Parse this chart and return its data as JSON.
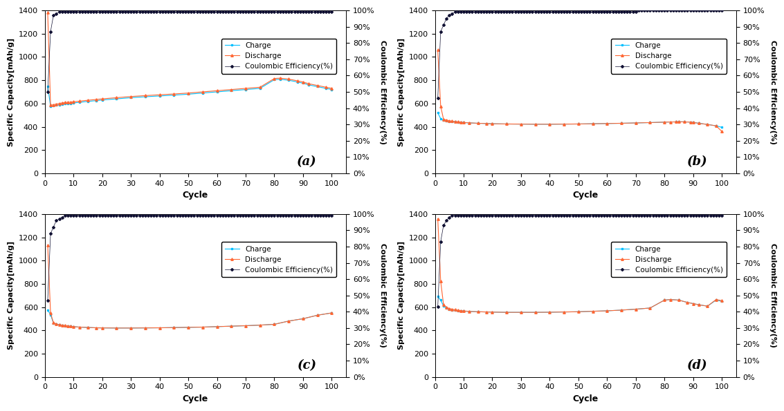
{
  "panels": [
    {
      "label": "(a)",
      "charge_cycles": [
        1,
        2,
        3,
        4,
        5,
        6,
        7,
        8,
        9,
        10,
        12,
        15,
        18,
        20,
        25,
        30,
        35,
        40,
        45,
        50,
        55,
        60,
        65,
        70,
        75,
        80,
        82,
        85,
        88,
        90,
        92,
        95,
        98,
        100
      ],
      "charge_vals": [
        750,
        575,
        580,
        585,
        590,
        595,
        598,
        600,
        602,
        605,
        610,
        618,
        625,
        630,
        640,
        650,
        658,
        665,
        672,
        680,
        690,
        700,
        710,
        720,
        730,
        805,
        808,
        800,
        785,
        775,
        760,
        745,
        730,
        720
      ],
      "discharge_cycles": [
        1,
        2,
        3,
        4,
        5,
        6,
        7,
        8,
        9,
        10,
        12,
        15,
        18,
        20,
        25,
        30,
        35,
        40,
        45,
        50,
        55,
        60,
        65,
        70,
        75,
        80,
        82,
        85,
        88,
        90,
        92,
        95,
        98,
        100
      ],
      "discharge_vals": [
        1380,
        585,
        590,
        595,
        600,
        605,
        608,
        610,
        612,
        615,
        620,
        628,
        635,
        640,
        650,
        660,
        668,
        675,
        682,
        690,
        700,
        710,
        720,
        730,
        740,
        815,
        818,
        810,
        795,
        785,
        770,
        755,
        740,
        730
      ],
      "ce_cycles": [
        1,
        2,
        3,
        4,
        5,
        6,
        7,
        8,
        9,
        10,
        11,
        12,
        13,
        14,
        15,
        16,
        17,
        18,
        19,
        20,
        21,
        22,
        23,
        24,
        25,
        26,
        27,
        28,
        29,
        30,
        31,
        32,
        33,
        34,
        35,
        36,
        37,
        38,
        39,
        40,
        41,
        42,
        43,
        44,
        45,
        46,
        47,
        48,
        49,
        50,
        51,
        52,
        53,
        54,
        55,
        56,
        57,
        58,
        59,
        60,
        61,
        62,
        63,
        64,
        65,
        66,
        67,
        68,
        69,
        70,
        71,
        72,
        73,
        74,
        75,
        76,
        77,
        78,
        79,
        80,
        81,
        82,
        83,
        84,
        85,
        86,
        87,
        88,
        89,
        90,
        91,
        92,
        93,
        94,
        95,
        96,
        97,
        98,
        99,
        100
      ],
      "ce_vals": [
        50,
        87,
        97,
        98,
        99,
        99,
        99,
        99,
        99,
        99,
        99,
        99,
        99,
        99,
        99,
        99,
        99,
        99,
        99,
        99,
        99,
        99,
        99,
        99,
        99,
        99,
        99,
        99,
        99,
        99,
        99,
        99,
        99,
        99,
        99,
        99,
        99,
        99,
        99,
        99,
        99,
        99,
        99,
        99,
        99,
        99,
        99,
        99,
        99,
        99,
        99,
        99,
        99,
        99,
        99,
        99,
        99,
        99,
        99,
        99,
        99,
        99,
        99,
        99,
        99,
        99,
        99,
        99,
        99,
        99,
        99,
        99,
        99,
        99,
        99,
        99,
        99,
        99,
        99,
        99,
        99,
        99,
        99,
        99,
        99,
        99,
        99,
        99,
        99,
        99,
        99,
        99,
        99,
        99,
        99,
        99,
        99,
        99,
        99,
        99
      ]
    },
    {
      "label": "(b)",
      "charge_cycles": [
        1,
        2,
        3,
        4,
        5,
        6,
        7,
        8,
        9,
        10,
        12,
        15,
        18,
        20,
        25,
        30,
        35,
        40,
        45,
        50,
        55,
        60,
        65,
        70,
        75,
        80,
        82,
        84,
        85,
        87,
        89,
        90,
        92,
        95,
        98,
        100
      ],
      "charge_vals": [
        520,
        470,
        455,
        450,
        447,
        444,
        442,
        440,
        438,
        436,
        433,
        430,
        428,
        426,
        424,
        423,
        422,
        422,
        423,
        424,
        426,
        428,
        430,
        433,
        436,
        440,
        441,
        442,
        443,
        442,
        440,
        438,
        430,
        420,
        408,
        395
      ],
      "discharge_cycles": [
        1,
        2,
        3,
        4,
        5,
        6,
        7,
        8,
        9,
        10,
        12,
        15,
        18,
        20,
        25,
        30,
        35,
        40,
        45,
        50,
        55,
        60,
        65,
        70,
        75,
        80,
        82,
        84,
        85,
        87,
        89,
        90,
        92,
        95,
        98,
        100
      ],
      "discharge_vals": [
        1060,
        578,
        465,
        458,
        452,
        448,
        445,
        442,
        440,
        437,
        434,
        430,
        428,
        426,
        424,
        423,
        422,
        422,
        423,
        424,
        426,
        428,
        430,
        433,
        436,
        440,
        441,
        442,
        443,
        442,
        440,
        438,
        430,
        420,
        408,
        360
      ],
      "ce_cycles": [
        1,
        2,
        3,
        4,
        5,
        6,
        7,
        8,
        9,
        10,
        11,
        12,
        13,
        14,
        15,
        16,
        17,
        18,
        19,
        20,
        21,
        22,
        23,
        24,
        25,
        26,
        27,
        28,
        29,
        30,
        31,
        32,
        33,
        34,
        35,
        36,
        37,
        38,
        39,
        40,
        41,
        42,
        43,
        44,
        45,
        46,
        47,
        48,
        49,
        50,
        51,
        52,
        53,
        54,
        55,
        56,
        57,
        58,
        59,
        60,
        61,
        62,
        63,
        64,
        65,
        66,
        67,
        68,
        69,
        70,
        71,
        72,
        73,
        74,
        75,
        76,
        77,
        78,
        79,
        80,
        81,
        82,
        83,
        84,
        85,
        86,
        87,
        88,
        89,
        90,
        91,
        92,
        93,
        94,
        95,
        96,
        97,
        98,
        99,
        100
      ],
      "ce_vals": [
        46,
        87,
        91,
        95,
        97,
        98,
        99,
        99,
        99,
        99,
        99,
        99,
        99,
        99,
        99,
        99,
        99,
        99,
        99,
        99,
        99,
        99,
        99,
        99,
        99,
        99,
        99,
        99,
        99,
        99,
        99,
        99,
        99,
        99,
        99,
        99,
        99,
        99,
        99,
        99,
        99,
        99,
        99,
        99,
        99,
        99,
        99,
        99,
        99,
        99,
        99,
        99,
        99,
        99,
        99,
        99,
        99,
        99,
        99,
        99,
        99,
        99,
        99,
        99,
        99,
        99,
        99,
        99,
        99,
        99,
        100,
        100,
        100,
        100,
        100,
        100,
        100,
        100,
        100,
        100,
        100,
        100,
        100,
        100,
        100,
        100,
        100,
        100,
        100,
        100,
        100,
        100,
        100,
        100,
        100,
        100,
        100,
        100,
        100,
        100
      ]
    },
    {
      "label": "(c)",
      "charge_cycles": [
        1,
        2,
        3,
        4,
        5,
        6,
        7,
        8,
        9,
        10,
        12,
        15,
        18,
        20,
        25,
        30,
        35,
        40,
        45,
        50,
        55,
        60,
        65,
        70,
        75,
        80,
        85,
        90,
        95,
        100
      ],
      "charge_vals": [
        575,
        535,
        462,
        452,
        447,
        443,
        440,
        437,
        435,
        432,
        428,
        425,
        422,
        421,
        420,
        420,
        421,
        422,
        424,
        426,
        428,
        432,
        436,
        440,
        445,
        452,
        480,
        500,
        530,
        550
      ],
      "discharge_cycles": [
        1,
        2,
        3,
        4,
        5,
        6,
        7,
        8,
        9,
        10,
        12,
        15,
        18,
        20,
        25,
        30,
        35,
        40,
        45,
        50,
        55,
        60,
        65,
        70,
        75,
        80,
        85,
        90,
        95,
        100
      ],
      "discharge_vals": [
        1130,
        548,
        467,
        455,
        449,
        445,
        441,
        438,
        435,
        432,
        428,
        425,
        422,
        421,
        420,
        420,
        421,
        422,
        424,
        426,
        428,
        432,
        436,
        440,
        445,
        452,
        480,
        500,
        530,
        550
      ],
      "ce_cycles": [
        1,
        2,
        3,
        4,
        5,
        6,
        7,
        8,
        9,
        10,
        11,
        12,
        13,
        14,
        15,
        16,
        17,
        18,
        19,
        20,
        21,
        22,
        23,
        24,
        25,
        26,
        27,
        28,
        29,
        30,
        31,
        32,
        33,
        34,
        35,
        36,
        37,
        38,
        39,
        40,
        41,
        42,
        43,
        44,
        45,
        46,
        47,
        48,
        49,
        50,
        51,
        52,
        53,
        54,
        55,
        56,
        57,
        58,
        59,
        60,
        61,
        62,
        63,
        64,
        65,
        66,
        67,
        68,
        69,
        70,
        71,
        72,
        73,
        74,
        75,
        76,
        77,
        78,
        79,
        80,
        81,
        82,
        83,
        84,
        85,
        86,
        87,
        88,
        89,
        90,
        91,
        92,
        93,
        94,
        95,
        96,
        97,
        98,
        99,
        100
      ],
      "ce_vals": [
        47,
        88,
        92,
        96,
        97,
        98,
        99,
        99,
        99,
        99,
        99,
        99,
        99,
        99,
        99,
        99,
        99,
        99,
        99,
        99,
        99,
        99,
        99,
        99,
        99,
        99,
        99,
        99,
        99,
        99,
        99,
        99,
        99,
        99,
        99,
        99,
        99,
        99,
        99,
        99,
        99,
        99,
        99,
        99,
        99,
        99,
        99,
        99,
        99,
        99,
        99,
        99,
        99,
        99,
        99,
        99,
        99,
        99,
        99,
        99,
        99,
        99,
        99,
        99,
        99,
        99,
        99,
        99,
        99,
        99,
        99,
        99,
        99,
        99,
        99,
        99,
        99,
        99,
        99,
        99,
        99,
        99,
        99,
        99,
        99,
        99,
        99,
        99,
        99,
        99,
        99,
        99,
        99,
        99,
        99,
        99,
        99,
        99,
        99,
        99
      ]
    },
    {
      "label": "(d)",
      "charge_cycles": [
        1,
        2,
        3,
        4,
        5,
        6,
        7,
        8,
        9,
        10,
        12,
        15,
        18,
        20,
        25,
        30,
        35,
        40,
        45,
        50,
        55,
        60,
        65,
        70,
        75,
        80,
        82,
        85,
        88,
        90,
        92,
        95,
        98,
        100
      ],
      "charge_vals": [
        690,
        660,
        610,
        590,
        580,
        575,
        572,
        570,
        567,
        565,
        562,
        560,
        558,
        557,
        555,
        555,
        555,
        556,
        558,
        560,
        564,
        568,
        574,
        582,
        592,
        660,
        665,
        660,
        640,
        630,
        620,
        608,
        660,
        650
      ],
      "discharge_cycles": [
        1,
        2,
        3,
        4,
        5,
        6,
        7,
        8,
        9,
        10,
        12,
        15,
        18,
        20,
        25,
        30,
        35,
        40,
        45,
        50,
        55,
        60,
        65,
        70,
        75,
        80,
        82,
        85,
        88,
        90,
        92,
        95,
        98,
        100
      ],
      "discharge_vals": [
        1360,
        825,
        622,
        600,
        588,
        582,
        577,
        573,
        570,
        567,
        563,
        560,
        558,
        557,
        555,
        555,
        555,
        556,
        558,
        560,
        564,
        568,
        574,
        582,
        592,
        660,
        665,
        660,
        640,
        630,
        620,
        608,
        665,
        655
      ],
      "ce_cycles": [
        1,
        2,
        3,
        4,
        5,
        6,
        7,
        8,
        9,
        10,
        11,
        12,
        13,
        14,
        15,
        16,
        17,
        18,
        19,
        20,
        21,
        22,
        23,
        24,
        25,
        26,
        27,
        28,
        29,
        30,
        31,
        32,
        33,
        34,
        35,
        36,
        37,
        38,
        39,
        40,
        41,
        42,
        43,
        44,
        45,
        46,
        47,
        48,
        49,
        50,
        51,
        52,
        53,
        54,
        55,
        56,
        57,
        58,
        59,
        60,
        61,
        62,
        63,
        64,
        65,
        66,
        67,
        68,
        69,
        70,
        71,
        72,
        73,
        74,
        75,
        76,
        77,
        78,
        79,
        80,
        81,
        82,
        83,
        84,
        85,
        86,
        87,
        88,
        89,
        90,
        91,
        92,
        93,
        94,
        95,
        96,
        97,
        98,
        99,
        100
      ],
      "ce_vals": [
        43,
        83,
        93,
        96,
        98,
        99,
        99,
        99,
        99,
        99,
        99,
        99,
        99,
        99,
        99,
        99,
        99,
        99,
        99,
        99,
        99,
        99,
        99,
        99,
        99,
        99,
        99,
        99,
        99,
        99,
        99,
        99,
        99,
        99,
        99,
        99,
        99,
        99,
        99,
        99,
        99,
        99,
        99,
        99,
        99,
        99,
        99,
        99,
        99,
        99,
        99,
        99,
        99,
        99,
        99,
        99,
        99,
        99,
        99,
        99,
        99,
        99,
        99,
        99,
        99,
        99,
        99,
        99,
        99,
        99,
        99,
        99,
        99,
        99,
        99,
        99,
        99,
        99,
        99,
        99,
        99,
        99,
        99,
        99,
        99,
        99,
        99,
        99,
        99,
        99,
        99,
        99,
        99,
        99,
        99,
        99,
        99,
        99,
        99,
        99
      ]
    }
  ],
  "charge_color": "#00BFFF",
  "discharge_color": "#FF6633",
  "ce_color": "#111133",
  "ylim_capacity": [
    0,
    1400
  ],
  "ylim_ce": [
    0,
    100
  ],
  "yticks_capacity": [
    0,
    200,
    400,
    600,
    800,
    1000,
    1200,
    1400
  ],
  "yticks_ce": [
    0,
    10,
    20,
    30,
    40,
    50,
    60,
    70,
    80,
    90,
    100
  ],
  "xticks": [
    0,
    10,
    20,
    30,
    40,
    50,
    60,
    70,
    80,
    90,
    100
  ],
  "xlim": [
    0,
    105
  ],
  "xlabel": "Cycle",
  "ylabel_left": "Specific Capacity[mAh/g]",
  "ylabel_right": "Coulombic Efficiency(%)"
}
